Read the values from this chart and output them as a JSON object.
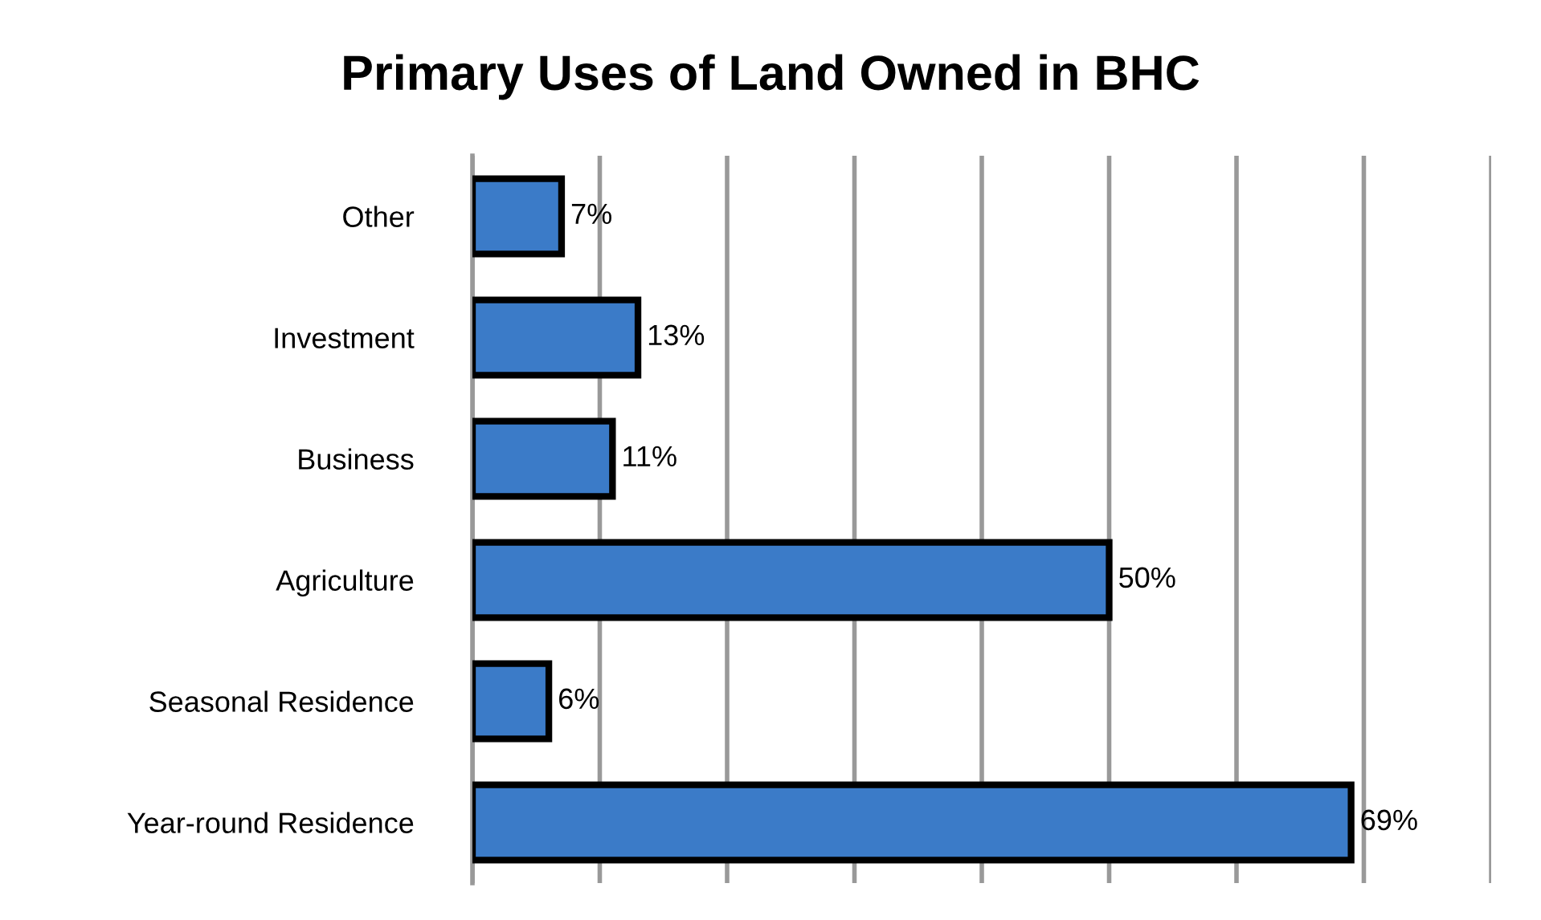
{
  "chart_data": {
    "type": "bar",
    "orientation": "horizontal",
    "title": "Primary Uses of Land Owned in BHC",
    "categories": [
      "Other",
      "Investment",
      "Business",
      "Agriculture",
      "Seasonal Residence",
      "Year-round Residence"
    ],
    "values": [
      7,
      13,
      11,
      50,
      6,
      69
    ],
    "color": "#3b7bc8",
    "value_labels": [
      "7%",
      "13%",
      "11%",
      "50%",
      "6%",
      "69%"
    ],
    "xlim": [
      0,
      80
    ],
    "xticks": [
      {
        "value": 0,
        "label": null
      },
      {
        "value": 10,
        "label": null
      },
      {
        "value": 20,
        "label": null
      },
      {
        "value": 30,
        "label": null
      },
      {
        "value": 40,
        "label": null
      },
      {
        "value": 50,
        "label": null
      },
      {
        "value": 60,
        "label": null
      },
      {
        "value": 70,
        "label": null
      },
      {
        "value": 80,
        "label": null
      }
    ],
    "grid": "x",
    "tick_labels": "y",
    "legend": false
  }
}
